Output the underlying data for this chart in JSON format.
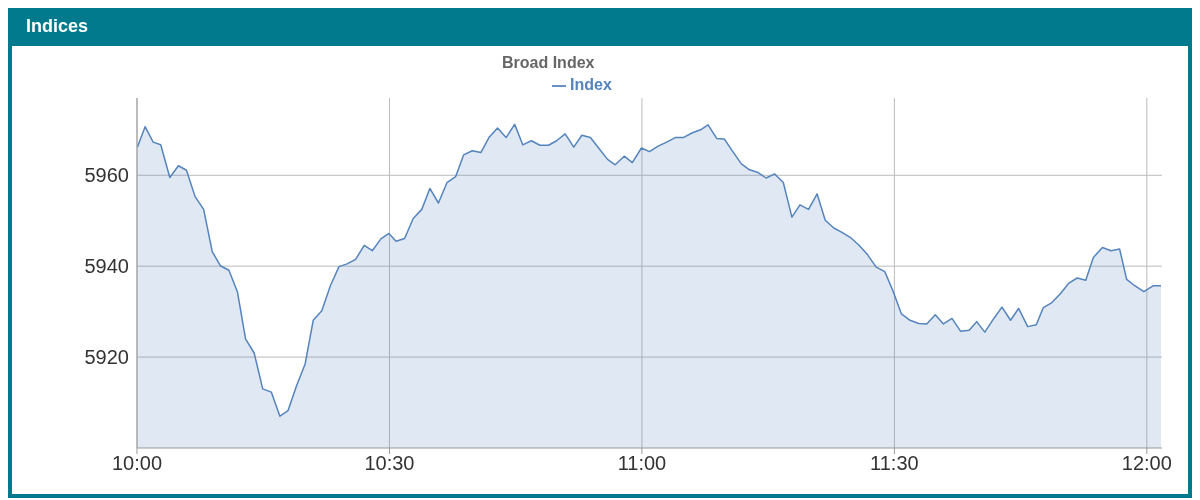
{
  "chart_data": {
    "type": "area",
    "title": "Indices",
    "subtitle": "Broad Index",
    "x": [
      10.001,
      10.016,
      10.032,
      10.047,
      10.065,
      10.082,
      10.098,
      10.115,
      10.132,
      10.149,
      10.165,
      10.182,
      10.199,
      10.215,
      10.232,
      10.249,
      10.266,
      10.283,
      10.299,
      10.316,
      10.333,
      10.349,
      10.366,
      10.383,
      10.4,
      10.416,
      10.433,
      10.45,
      10.466,
      10.483,
      10.499,
      10.513,
      10.53,
      10.547,
      10.564,
      10.58,
      10.597,
      10.614,
      10.631,
      10.647,
      10.664,
      10.681,
      10.697,
      10.714,
      10.731,
      10.748,
      10.764,
      10.781,
      10.798,
      10.815,
      10.831,
      10.848,
      10.865,
      10.881,
      10.898,
      10.915,
      10.932,
      10.947,
      10.965,
      10.981,
      10.999,
      11.015,
      11.032,
      11.049,
      11.066,
      11.082,
      11.099,
      11.116,
      11.131,
      11.148,
      11.163,
      11.18,
      11.197,
      11.213,
      11.23,
      11.246,
      11.263,
      11.28,
      11.297,
      11.313,
      11.33,
      11.347,
      11.363,
      11.38,
      11.397,
      11.413,
      11.43,
      11.447,
      11.464,
      11.481,
      11.497,
      11.514,
      11.531,
      11.548,
      11.564,
      11.581,
      11.597,
      11.614,
      11.631,
      11.648,
      11.663,
      11.679,
      11.697,
      11.713,
      11.73,
      11.746,
      11.764,
      11.781,
      11.795,
      11.812,
      11.829,
      11.845,
      11.862,
      11.879,
      11.894,
      11.912,
      11.929,
      11.946,
      11.96,
      11.976,
      11.994,
      12.013,
      12.028
    ],
    "series": [
      {
        "name": "Index",
        "color": "#5584bd",
        "values": [
          5966.2,
          5970.7,
          5967.3,
          5966.7,
          5959.5,
          5962.1,
          5961.1,
          5955.3,
          5952.5,
          5943.2,
          5940.1,
          5939.1,
          5934.3,
          5924.0,
          5920.9,
          5913.0,
          5912.3,
          5907.0,
          5908.2,
          5913.7,
          5918.5,
          5928.1,
          5930.2,
          5935.7,
          5939.9,
          5940.5,
          5941.5,
          5944.6,
          5943.4,
          5946.0,
          5947.2,
          5945.5,
          5946.1,
          5950.5,
          5952.5,
          5957.1,
          5953.9,
          5958.4,
          5959.7,
          5964.5,
          5965.4,
          5965.0,
          5968.3,
          5970.4,
          5968.3,
          5971.2,
          5966.7,
          5967.6,
          5966.6,
          5966.6,
          5967.6,
          5969.1,
          5966.2,
          5968.8,
          5968.3,
          5965.9,
          5963.5,
          5962.3,
          5964.2,
          5962.8,
          5966.0,
          5965.2,
          5966.4,
          5967.3,
          5968.3,
          5968.3,
          5969.3,
          5970.0,
          5971.1,
          5968.1,
          5968.0,
          5965.2,
          5962.5,
          5961.2,
          5960.6,
          5959.4,
          5960.3,
          5958.4,
          5950.8,
          5953.5,
          5952.5,
          5955.9,
          5950.1,
          5948.4,
          5947.4,
          5946.3,
          5944.6,
          5942.5,
          5939.8,
          5938.8,
          5934.6,
          5929.5,
          5928.1,
          5927.4,
          5927.3,
          5929.3,
          5927.3,
          5928.5,
          5925.7,
          5925.9,
          5927.8,
          5925.5,
          5928.5,
          5931.0,
          5928.1,
          5930.7,
          5926.7,
          5927.1,
          5930.9,
          5932.0,
          5934.0,
          5936.2,
          5937.4,
          5936.9,
          5941.9,
          5944.1,
          5943.4,
          5943.8,
          5937.1,
          5935.7,
          5934.4,
          5935.7,
          5935.7
        ]
      }
    ],
    "xlim": [
      10,
      12.03
    ],
    "xticks": [
      {
        "value": 10,
        "label": "10:00"
      },
      {
        "value": 10.5,
        "label": "10:30"
      },
      {
        "value": 11,
        "label": "11:00"
      },
      {
        "value": 11.5,
        "label": "11:30"
      },
      {
        "value": 12,
        "label": "12:00"
      }
    ],
    "ylim": [
      5900,
      5977
    ],
    "yticks": [
      5920,
      5940,
      5960
    ],
    "grid": true,
    "legend": "top",
    "marker": "none",
    "line_style": "solid"
  }
}
